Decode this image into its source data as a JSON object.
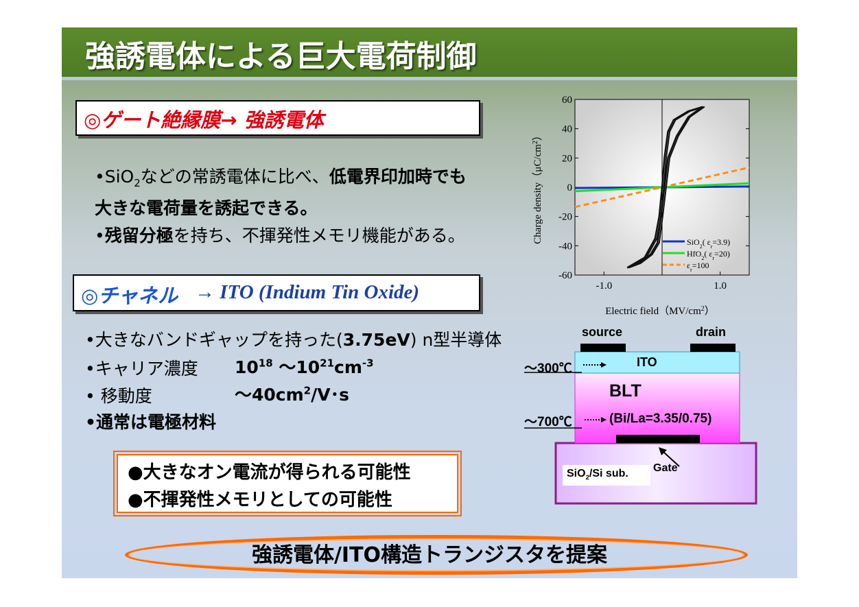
{
  "title": "強誘電体による巨大電荷制御",
  "section1": {
    "heading": "◎ゲート絶縁膜→ 強誘電体",
    "bullet1_pre": "•SiO",
    "bullet1_sub": "2",
    "bullet1_mid": "などの常誘電体に比べ、",
    "bullet1_bold": "低電界印加時でも",
    "bullet1_line2": "大きな電荷量を誘起できる。",
    "bullet2_pre": "•",
    "bullet2_bold": "残留分極",
    "bullet2_rest": "を持ち、不揮発性メモリ機能がある。"
  },
  "section2": {
    "heading_jp": "◎チャネル",
    "heading_en": "→ ITO (Indium Tin Oxide)",
    "b1_pre": "•大きなバンドギャップを持った(",
    "b1_bold": "3.75eV",
    "b1_post": ") n型半導体",
    "b2_label": "•キャリア濃度",
    "b2_v1": "10",
    "b2_e1": "18",
    "b2_mid": " ～10",
    "b2_e2": "21",
    "b2_unit": "cm",
    "b2_e3": "-3",
    "b3_label": "• 移動度",
    "b3_v": "～40cm",
    "b3_e": "2",
    "b3_unit": "/V･s",
    "b4": "•通常は電極材料"
  },
  "notes": [
    "●大きなオン電流が得られる可能性",
    "●不揮発性メモリとしての可能性"
  ],
  "conclusion": "強誘電体/ITO構造トランジスタを提案",
  "chart_data": {
    "type": "line",
    "xlabel": "Electric field（MV/cm",
    "xlabel_sup": "2",
    "xlabel_end": "）",
    "ylabel": "Charge density（μC/cm",
    "ylabel_sup": "2",
    "ylabel_end": "）",
    "xlim": [
      -1.5,
      1.5
    ],
    "ylim": [
      -60,
      60
    ],
    "xticks": [
      "-1.0",
      "1.0"
    ],
    "xtick_values": [
      -1.0,
      1.0
    ],
    "yticks": [
      60,
      40,
      20,
      0,
      -20,
      -40,
      -60
    ],
    "series": [
      {
        "name": "SiO2(εr=3.9)",
        "legend": "SiO",
        "legend_sub": "2",
        "legend_rest": "( ε",
        "legend_sub2": "r",
        "legend_end": "=3.9)",
        "color": "#1030d0",
        "x": [
          -1.5,
          1.5
        ],
        "y": [
          -0.5,
          0.5
        ]
      },
      {
        "name": "HfO2(εr=20)",
        "legend": "HfO",
        "legend_sub": "2",
        "legend_rest": "( ε",
        "legend_sub2": "r",
        "legend_end": "=20)",
        "color": "#22dd22",
        "x": [
          -1.5,
          1.5
        ],
        "y": [
          -2.7,
          2.7
        ]
      },
      {
        "name": "εr=100",
        "legend": "",
        "legend_sub": "",
        "legend_rest": "ε",
        "legend_sub2": "r",
        "legend_end": "=100",
        "color": "#ff8c1a",
        "dashed": true,
        "x": [
          -1.5,
          1.5
        ],
        "y": [
          -13.5,
          13.5
        ]
      }
    ],
    "hysteresis": {
      "upper_x": [
        -0.6,
        -0.3,
        -0.12,
        -0.05,
        0.0,
        0.04,
        0.1,
        0.2,
        0.45,
        0.7
      ],
      "upper_y": [
        -55,
        -48,
        -35,
        -20,
        0,
        20,
        38,
        46,
        52,
        55
      ],
      "lower_x": [
        -0.6,
        -0.4,
        -0.2,
        -0.08,
        -0.02,
        0.04,
        0.1,
        0.25,
        0.45,
        0.7
      ],
      "lower_y": [
        -55,
        -52,
        -46,
        -38,
        -20,
        0,
        20,
        35,
        48,
        55
      ]
    }
  },
  "device": {
    "source": "source",
    "drain": "drain",
    "ito": "ITO",
    "blt": "BLT",
    "blt_comp": "(Bi/La=3.35/0.75)",
    "temp_ito": "～300℃",
    "temp_blt": "～700℃",
    "substrate_pre": "SiO",
    "substrate_sub": "2",
    "substrate_post": "/Si sub.",
    "gate": "Gate",
    "colors": {
      "ito": "#a8f0ff",
      "blt_top": "#ffe8ff",
      "blt_bottom": "#ff44ff",
      "substrate": "#e8c6ff",
      "border": "#8a1f8a"
    }
  }
}
